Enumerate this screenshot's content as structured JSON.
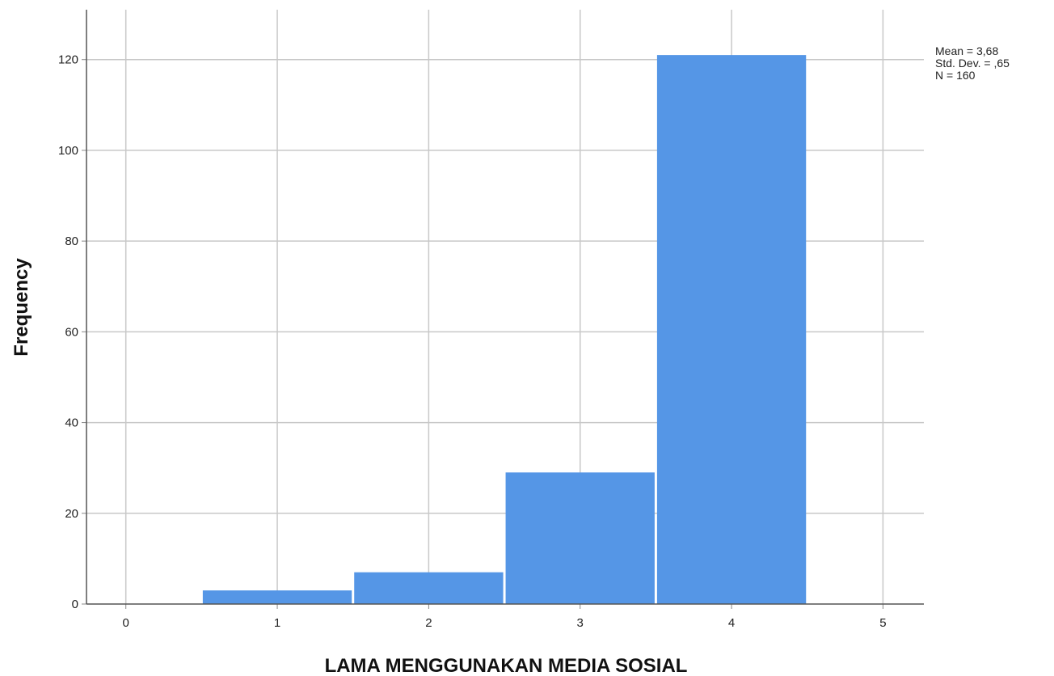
{
  "chart_data": {
    "type": "bar",
    "title": "",
    "xlabel": "LAMA MENGGUNAKAN MEDIA SOSIAL",
    "ylabel": "Frequency",
    "x": [
      1,
      2,
      3,
      4
    ],
    "values": [
      3,
      7,
      29,
      121
    ],
    "bin_width": 1,
    "xlim": [
      -0.26,
      5.27
    ],
    "ylim": [
      0,
      131
    ],
    "x_ticks": [
      "0",
      "1",
      "2",
      "3",
      "4",
      "5"
    ],
    "y_ticks": [
      "0",
      "20",
      "40",
      "60",
      "80",
      "100",
      "120"
    ],
    "grid": true,
    "bar_color": "#5596e6",
    "grid_color": "#c8c8c8",
    "stats": [
      "Mean = 3,68",
      "Std. Dev. = ,65",
      "N = 160"
    ],
    "stats_position": "top-right"
  }
}
